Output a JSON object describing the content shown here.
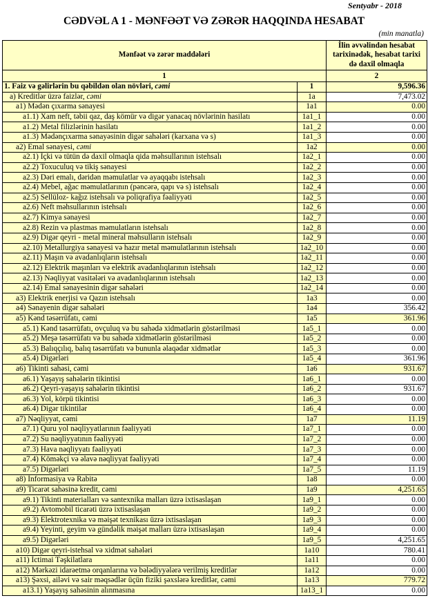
{
  "header": {
    "date": "Sentyabr - 2018",
    "title": "CƏDVƏL A 1 - MƏNFƏƏT VƏ ZƏRƏR HAQQINDA HESABAT",
    "unit": "(min manatla)"
  },
  "table": {
    "col1_header": "Mənfəət və zərər maddələri",
    "col2_header": "İlin əvvəlindən hesabat tarixinədək, hesabat tarixi də daxil olmaqla",
    "col1_num": "1",
    "col2_num": "2",
    "rows": [
      {
        "label": "1. Faiz və gəlirlərin bu qəbildən olan növləri, ",
        "em": "cəmi",
        "code": "1",
        "value": "9,596.36",
        "level": 0,
        "bold": true,
        "hl": true
      },
      {
        "label": "a) Kreditlər üzrə faizlər, ",
        "em": "cəmi",
        "code": "1a",
        "value": "7,473.02",
        "level": 1,
        "hl": false
      },
      {
        "label": "a1) Mədən çıxarma sənayesi",
        "code": "1a1",
        "value": "0.00",
        "level": 2,
        "hl": true
      },
      {
        "label": "a1.1) Xam neft, təbii qaz, daş kömür və digər yanacaq növlərinin hasilatı",
        "code": "1a1_1",
        "value": "0.00",
        "level": 3
      },
      {
        "label": "a1.2) Metal filizlərinin hasilatı",
        "code": "1a1_2",
        "value": "0.00",
        "level": 3
      },
      {
        "label": "a1.3) Mədənçıxarma sənayəsinin digər sahələri (karxana və s)",
        "code": "1a1_3",
        "value": "0.00",
        "level": 3
      },
      {
        "label": "a2) Emal sənayesi, ",
        "em": "cəmi",
        "code": "1a2",
        "value": "0.00",
        "level": 2,
        "hl": true
      },
      {
        "label": "a2.1) İçki və tütün də daxil olmaqla qida məhsullarının istehsalı",
        "code": "1a2_1",
        "value": "0.00",
        "level": 3
      },
      {
        "label": "a2.2) Toxuculuq və tikiş sənayesi",
        "code": "1a2_2",
        "value": "0.00",
        "level": 3
      },
      {
        "label": "a2.3) Dəri emalı, dəridən məmulatlar və ayaqqabı istehsalı",
        "code": "1a2_3",
        "value": "0.00",
        "level": 3
      },
      {
        "label": "a2.4) Mebel, ağac məmulatlarının (pəncərə, qapı və s) istehsalı",
        "code": "1a2_4",
        "value": "0.00",
        "level": 3
      },
      {
        "label": "a2.5) Sellüloz- kağız istehsalı və poliqrafiya fəaliyyəti",
        "code": "1a2_5",
        "value": "0.00",
        "level": 3
      },
      {
        "label": "a2.6) Neft məhsullarının istehsalı",
        "code": "1a2_6",
        "value": "0.00",
        "level": 3
      },
      {
        "label": "a2.7) Kimya sənayesi",
        "code": "1a2_7",
        "value": "0.00",
        "level": 3
      },
      {
        "label": "a2.8) Rezin və plastmas məmulatların istehsalı",
        "code": "1a2_8",
        "value": "0.00",
        "level": 3
      },
      {
        "label": "a2.9) Digər qeyri - metal mineral məhsulların istehsalı",
        "code": "1a2_9",
        "value": "0.00",
        "level": 3
      },
      {
        "label": "a2.10) Metallurgiya sənayesi və hazır metal məmulatlarının istehsalı",
        "code": "1a2_10",
        "value": "0.00",
        "level": 3
      },
      {
        "label": "a2.11) Maşın və avadanlıqların istehsalı",
        "code": "1a2_11",
        "value": "0.00",
        "level": 3
      },
      {
        "label": "a2.12) Elektrik maşınları və elektrik avadanlıqlarının istehsalı",
        "code": "1a2_12",
        "value": "0.00",
        "level": 3
      },
      {
        "label": "a2.13) Nəqliyyat vasitələri və avadanlıqlarının istehsalı",
        "code": "1a2_13",
        "value": "0.00",
        "level": 3
      },
      {
        "label": "a2.14) Emal sənayesinin digər sahələri",
        "code": "1a2_14",
        "value": "0.00",
        "level": 3
      },
      {
        "label": "a3) Elektrik enerjisi və Qazın istehsalı",
        "code": "1a3",
        "value": "0.00",
        "level": 2
      },
      {
        "label": "a4) Sənayenin digər sahələri",
        "code": "1a4",
        "value": "356.42",
        "level": 2
      },
      {
        "label": "a5) Kənd təsərrüfatı, cəmi",
        "code": "1a5",
        "value": "361.96",
        "level": 2,
        "hl": true
      },
      {
        "label": "a5.1) Kənd təsərrüfatı, ovçuluq və bu sahədə xidmətlərin göstərilməsi",
        "code": "1a5_1",
        "value": "0.00",
        "level": 3
      },
      {
        "label": "a5.2) Meşə təsərrüfatı və bu sahədə xidmətlərin göstərilməsi",
        "code": "1a5_2",
        "value": "0.00",
        "level": 3
      },
      {
        "label": "a5.3) Balıqçılıq, balıq təsərrüfatı və bununla əlaqədar xidmətlər",
        "code": "1a5_3",
        "value": "0.00",
        "level": 3
      },
      {
        "label": "a5.4) Digərləri",
        "code": "1a5_4",
        "value": "361.96",
        "level": 3
      },
      {
        "label": "a6) Tikinti sahəsi, cəmi",
        "code": "1a6",
        "value": "931.67",
        "level": 2,
        "hl": true
      },
      {
        "label": "a6.1) Yaşayış sahələrin tikintisi",
        "code": "1a6_1",
        "value": "0.00",
        "level": 3
      },
      {
        "label": "a6.2) Qeyri-yaşayış sahələrin tikintisi",
        "code": "1a6_2",
        "value": "931.67",
        "level": 3
      },
      {
        "label": "a6.3) Yol, körpü tikintisi",
        "code": "1a6_3",
        "value": "0.00",
        "level": 3
      },
      {
        "label": "a6.4) Digər tikintilər",
        "code": "1a6_4",
        "value": "0.00",
        "level": 3
      },
      {
        "label": "a7) Nəqliyyat, cəmi",
        "code": "1a7",
        "value": "11.19",
        "level": 2,
        "hl": true
      },
      {
        "label": "a7.1) Quru yol nəqliyyatlarının fəaliyyəti",
        "code": "1a7_1",
        "value": "0.00",
        "level": 3
      },
      {
        "label": "a7.2) Su nəqliyyatının fəaliyyəti",
        "code": "1a7_2",
        "value": "0.00",
        "level": 3
      },
      {
        "label": "a7.3) Hava nəqliyyatı fəaliyyəti",
        "code": "1a7_3",
        "value": "0.00",
        "level": 3
      },
      {
        "label": "a7.4) Köməkçi və əlavə nəqliyyat fəaliyyəti",
        "code": "1a7_4",
        "value": "0.00",
        "level": 3
      },
      {
        "label": "a7.5) Digərləri",
        "code": "1a7_5",
        "value": "11.19",
        "level": 3
      },
      {
        "label": "a8)  İnformasiya və Rabitə",
        "code": "1a8",
        "value": "0.00",
        "level": 2
      },
      {
        "label": "a9) Ticarət sahəsinə kredit, cəmi",
        "code": "1a9",
        "value": "4,251.65",
        "level": 2,
        "hl": true
      },
      {
        "label": "a9.1) Tikinti materialları və santexnika malları üzrə ixtisaslaşan",
        "code": "1a9_1",
        "value": "0.00",
        "level": 3
      },
      {
        "label": "a9.2) Avtomobil ticarəti üzrə ixtisaslaşan",
        "code": "1a9_2",
        "value": "0.00",
        "level": 3
      },
      {
        "label": "a9.3) Elektrotexnika və məişət texnikası üzrə ixtisaslaşan",
        "code": "1a9_3",
        "value": "0.00",
        "level": 3
      },
      {
        "label": "a9.4) Yeyinti, geyim və gündəlik məişət malları üzrə ixtisaslaşan",
        "code": "1a9_4",
        "value": "0.00",
        "level": 3
      },
      {
        "label": "a9.5) Digərləri",
        "code": "1a9_5",
        "value": "4,251.65",
        "level": 3
      },
      {
        "label": "a10) Digər qeyri-istehsal və xidmət sahələri",
        "code": "1a10",
        "value": "780.41",
        "level": 2
      },
      {
        "label": "a11) İctimai Təşkilatlara",
        "code": "1a11",
        "value": "0.00",
        "level": 2
      },
      {
        "label": "a12) Mərkəzi  idarəetmə orqanlarına və bələdiyyələrə verilmiş kreditlər",
        "code": "1a12",
        "value": "0.00",
        "level": 2
      },
      {
        "label": "a13) Şəxsi, ailəvi və sair məqsədlər üçün fiziki şəxslərə kreditlər, cəmi",
        "code": "1a13",
        "value": "779.72",
        "level": 2,
        "hl": true
      },
      {
        "label": "a13.1) Yaşayış sahəsinin alınmasına",
        "code": "1a13_1",
        "value": "0.00",
        "level": 3
      }
    ]
  }
}
